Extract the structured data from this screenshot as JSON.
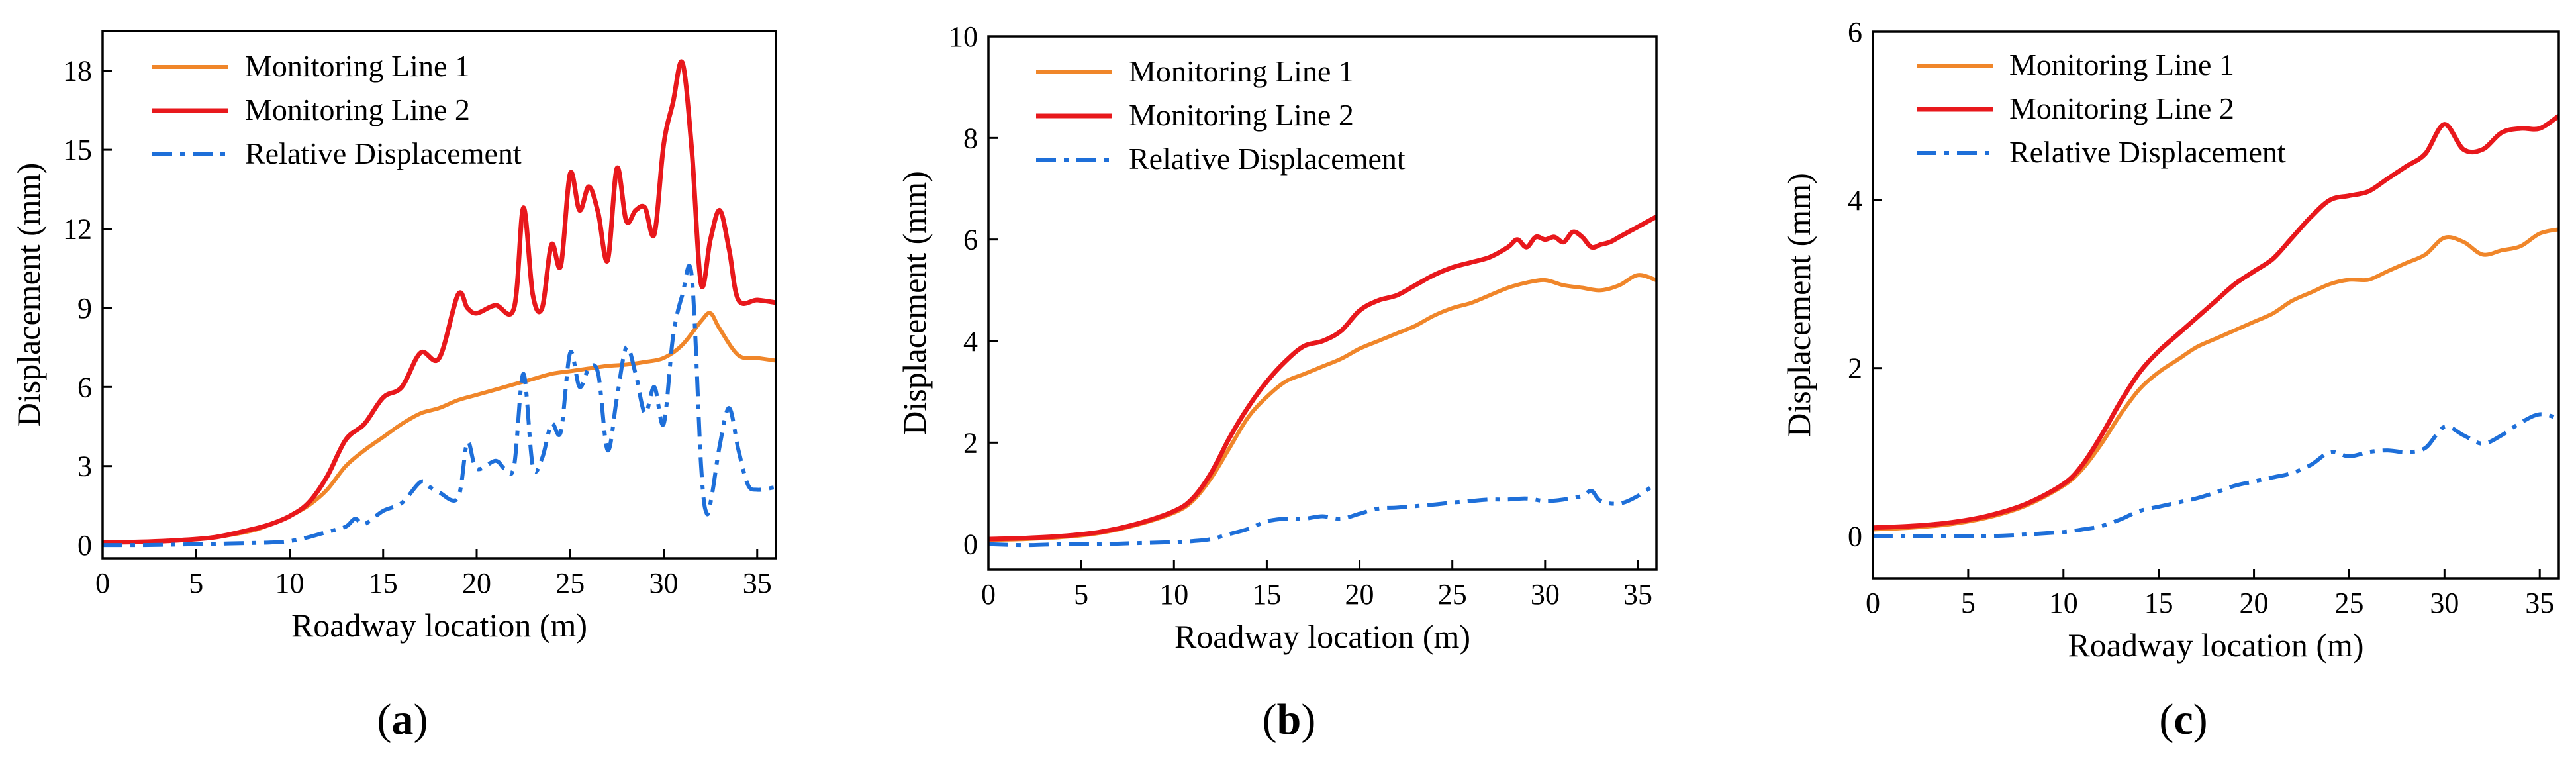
{
  "chart_data": [
    {
      "type": "line",
      "panel_label": "a",
      "xlabel": "Roadway location (m)",
      "ylabel": "Displacement (mm)",
      "xlim": [
        0,
        36
      ],
      "ylim": [
        -0.5,
        19.5
      ],
      "xticks": [
        0,
        5,
        10,
        15,
        20,
        25,
        30,
        35
      ],
      "yticks": [
        0,
        3,
        6,
        9,
        12,
        15,
        18
      ],
      "legend_position": "top-left",
      "series": [
        {
          "name": "Monitoring Line 1",
          "color": "#f0862a",
          "style": "solid",
          "x": [
            0,
            2,
            4,
            6,
            8,
            9,
            10,
            11,
            12,
            13,
            14,
            15,
            16,
            17,
            18,
            19,
            20,
            21,
            22,
            23,
            24,
            25,
            26,
            27,
            28,
            29,
            30,
            31,
            32,
            32.5,
            33,
            34,
            35,
            36
          ],
          "y": [
            0.1,
            0.12,
            0.18,
            0.3,
            0.55,
            0.8,
            1.1,
            1.5,
            2.1,
            3.0,
            3.6,
            4.1,
            4.6,
            5.0,
            5.2,
            5.5,
            5.7,
            5.9,
            6.1,
            6.3,
            6.5,
            6.6,
            6.7,
            6.8,
            6.85,
            6.95,
            7.1,
            7.6,
            8.5,
            8.8,
            8.2,
            7.2,
            7.1,
            7.0
          ]
        },
        {
          "name": "Monitoring Line 2",
          "color": "#e8181c",
          "style": "solid",
          "x": [
            0,
            2,
            4,
            6,
            8,
            9,
            10,
            11,
            12,
            13,
            14,
            15,
            16,
            17,
            18,
            19,
            19.5,
            20,
            21,
            22,
            22.5,
            23,
            23.5,
            24,
            24.5,
            25,
            25.5,
            26,
            26.5,
            27,
            27.5,
            28,
            28.5,
            29,
            29.5,
            30,
            30.5,
            31,
            31.5,
            32,
            32.5,
            33,
            33.5,
            34,
            35,
            36
          ],
          "y": [
            0.1,
            0.12,
            0.18,
            0.3,
            0.6,
            0.8,
            1.1,
            1.6,
            2.6,
            4.0,
            4.6,
            5.6,
            6.0,
            7.3,
            7.1,
            9.5,
            9.0,
            8.8,
            9.1,
            9.0,
            12.8,
            9.5,
            9.0,
            11.4,
            10.6,
            14.1,
            12.7,
            13.6,
            12.6,
            10.8,
            14.3,
            12.3,
            12.7,
            12.8,
            11.8,
            15.2,
            16.8,
            18.3,
            15.0,
            9.9,
            11.6,
            12.7,
            11.2,
            9.3,
            9.3,
            9.2
          ]
        },
        {
          "name": "Relative Displacement",
          "color": "#1e6fd9",
          "style": "dashdot",
          "x": [
            0,
            2,
            4,
            6,
            8,
            9,
            10,
            11,
            12,
            13,
            13.5,
            14,
            15,
            16,
            17,
            17.5,
            18,
            19,
            19.5,
            20,
            21,
            21.5,
            22,
            22.5,
            23,
            23.5,
            24,
            24.5,
            25,
            25.5,
            26,
            26.5,
            27,
            27.5,
            28,
            28.5,
            29,
            29.5,
            30,
            30.5,
            31,
            31.5,
            32,
            32.3,
            32.6,
            33,
            33.5,
            34,
            34.5,
            35,
            36
          ],
          "y": [
            0.0,
            0.0,
            0.02,
            0.05,
            0.08,
            0.1,
            0.15,
            0.3,
            0.5,
            0.7,
            1.0,
            0.8,
            1.3,
            1.6,
            2.4,
            2.2,
            2.0,
            1.8,
            3.9,
            2.9,
            3.2,
            2.9,
            3.0,
            6.5,
            3.0,
            3.3,
            4.6,
            4.3,
            7.3,
            6.0,
            6.7,
            6.5,
            3.6,
            5.6,
            7.5,
            6.5,
            5.0,
            6.0,
            4.6,
            7.9,
            9.5,
            10.2,
            3.0,
            1.2,
            2.0,
            3.8,
            5.2,
            3.6,
            2.3,
            2.1,
            2.2
          ]
        }
      ]
    },
    {
      "type": "line",
      "panel_label": "b",
      "xlabel": "Roadway location (m)",
      "ylabel": "Displacement (mm)",
      "xlim": [
        0,
        36
      ],
      "ylim": [
        -0.5,
        10
      ],
      "xticks": [
        0,
        5,
        10,
        15,
        20,
        25,
        30,
        35
      ],
      "yticks": [
        0,
        2,
        4,
        6,
        8,
        10
      ],
      "legend_position": "top-left",
      "series": [
        {
          "name": "Monitoring Line 1",
          "color": "#f0862a",
          "style": "solid",
          "x": [
            0,
            2,
            4,
            6,
            8,
            10,
            11,
            12,
            13,
            14,
            15,
            16,
            17,
            18,
            19,
            20,
            21,
            22,
            23,
            24,
            25,
            26,
            27,
            28,
            29,
            30,
            31,
            32,
            33,
            34,
            35,
            36
          ],
          "y": [
            0.08,
            0.1,
            0.14,
            0.22,
            0.38,
            0.62,
            0.85,
            1.3,
            1.9,
            2.5,
            2.9,
            3.2,
            3.35,
            3.5,
            3.65,
            3.85,
            4.0,
            4.15,
            4.3,
            4.5,
            4.65,
            4.75,
            4.9,
            5.05,
            5.15,
            5.2,
            5.1,
            5.05,
            5.0,
            5.1,
            5.3,
            5.2
          ]
        },
        {
          "name": "Monitoring Line 2",
          "color": "#e8181c",
          "style": "solid",
          "x": [
            0,
            2,
            4,
            6,
            8,
            10,
            11,
            12,
            13,
            14,
            15,
            16,
            17,
            18,
            19,
            20,
            21,
            22,
            23,
            24,
            25,
            26,
            27,
            28,
            28.5,
            29,
            29.5,
            30,
            30.5,
            31,
            31.5,
            32,
            32.5,
            33,
            33.5,
            34,
            35,
            36
          ],
          "y": [
            0.1,
            0.12,
            0.16,
            0.24,
            0.4,
            0.65,
            0.9,
            1.4,
            2.1,
            2.7,
            3.2,
            3.6,
            3.9,
            4.0,
            4.2,
            4.6,
            4.8,
            4.9,
            5.1,
            5.3,
            5.45,
            5.55,
            5.65,
            5.85,
            6.0,
            5.85,
            6.05,
            6.0,
            6.05,
            5.95,
            6.15,
            6.05,
            5.85,
            5.9,
            5.95,
            6.05,
            6.25,
            6.45
          ]
        },
        {
          "name": "Relative Displacement",
          "color": "#1e6fd9",
          "style": "dashdot",
          "x": [
            0,
            2,
            4,
            6,
            8,
            10,
            11,
            12,
            13,
            14,
            15,
            16,
            17,
            18,
            19,
            20,
            21,
            22,
            23,
            24,
            25,
            26,
            27,
            28,
            29,
            30,
            31,
            32,
            32.5,
            33,
            34,
            35,
            36
          ],
          "y": [
            0.0,
            -0.02,
            0.0,
            0.0,
            0.02,
            0.04,
            0.06,
            0.1,
            0.2,
            0.3,
            0.45,
            0.5,
            0.5,
            0.55,
            0.5,
            0.6,
            0.7,
            0.72,
            0.75,
            0.78,
            0.82,
            0.85,
            0.88,
            0.88,
            0.9,
            0.85,
            0.88,
            0.95,
            1.05,
            0.85,
            0.8,
            0.95,
            1.2
          ]
        }
      ]
    },
    {
      "type": "line",
      "panel_label": "c",
      "xlabel": "Roadway location (m)",
      "ylabel": "Displacement (mm)",
      "xlim": [
        0,
        36
      ],
      "ylim": [
        -0.5,
        6
      ],
      "xticks": [
        0,
        5,
        10,
        15,
        20,
        25,
        30,
        35
      ],
      "yticks": [
        0,
        2,
        4,
        6
      ],
      "legend_position": "top-left",
      "series": [
        {
          "name": "Monitoring Line 1",
          "color": "#f0862a",
          "style": "solid",
          "x": [
            0,
            2,
            4,
            6,
            8,
            10,
            11,
            12,
            13,
            14,
            15,
            16,
            17,
            18,
            19,
            20,
            21,
            22,
            23,
            24,
            25,
            26,
            27,
            28,
            29,
            30,
            31,
            32,
            33,
            34,
            35,
            36
          ],
          "y": [
            0.08,
            0.1,
            0.14,
            0.22,
            0.36,
            0.6,
            0.8,
            1.1,
            1.45,
            1.75,
            1.95,
            2.1,
            2.25,
            2.35,
            2.45,
            2.55,
            2.65,
            2.8,
            2.9,
            3.0,
            3.05,
            3.05,
            3.15,
            3.25,
            3.35,
            3.55,
            3.5,
            3.35,
            3.4,
            3.45,
            3.6,
            3.65
          ]
        },
        {
          "name": "Monitoring Line 2",
          "color": "#e8181c",
          "style": "solid",
          "x": [
            0,
            2,
            4,
            6,
            8,
            10,
            11,
            12,
            13,
            14,
            15,
            16,
            17,
            18,
            19,
            20,
            21,
            22,
            23,
            24,
            25,
            26,
            27,
            28,
            29,
            30,
            31,
            32,
            33,
            34,
            35,
            36
          ],
          "y": [
            0.1,
            0.12,
            0.16,
            0.24,
            0.38,
            0.62,
            0.85,
            1.2,
            1.6,
            1.95,
            2.2,
            2.4,
            2.6,
            2.8,
            3.0,
            3.15,
            3.3,
            3.55,
            3.8,
            4.0,
            4.05,
            4.1,
            4.25,
            4.4,
            4.55,
            4.9,
            4.6,
            4.6,
            4.8,
            4.85,
            4.85,
            5.0
          ]
        },
        {
          "name": "Relative Displacement",
          "color": "#1e6fd9",
          "style": "dashdot",
          "x": [
            0,
            2,
            4,
            6,
            8,
            10,
            11,
            12,
            13,
            14,
            15,
            16,
            17,
            18,
            19,
            20,
            21,
            22,
            23,
            24,
            25,
            26,
            27,
            28,
            29,
            30,
            31,
            32,
            33,
            34,
            35,
            36
          ],
          "y": [
            0.0,
            0.0,
            0.0,
            0.0,
            0.02,
            0.05,
            0.08,
            0.12,
            0.2,
            0.3,
            0.35,
            0.4,
            0.45,
            0.52,
            0.6,
            0.65,
            0.7,
            0.75,
            0.85,
            1.0,
            0.95,
            1.0,
            1.02,
            1.0,
            1.05,
            1.3,
            1.2,
            1.1,
            1.2,
            1.35,
            1.45,
            1.4
          ]
        }
      ]
    }
  ]
}
